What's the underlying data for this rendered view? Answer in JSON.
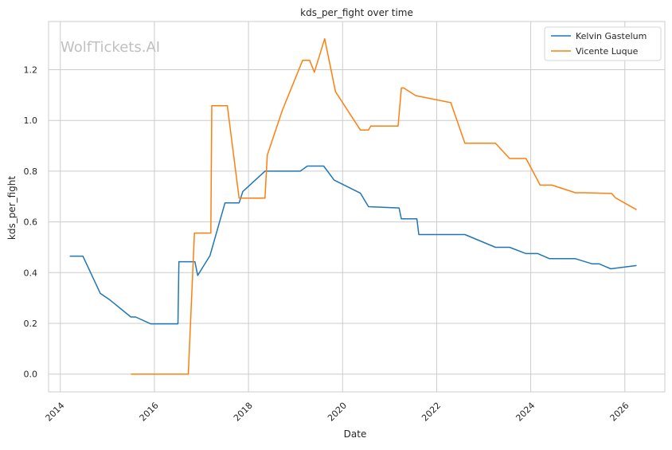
{
  "chart_data": {
    "type": "line",
    "title": "kds_per_fight over time",
    "xlabel": "Date",
    "ylabel": "kds_per_fight",
    "watermark": "WolfTickets.AI",
    "xlim": [
      2013.75,
      2026.85
    ],
    "ylim": [
      -0.07,
      1.39
    ],
    "xticks": [
      2014,
      2016,
      2018,
      2020,
      2022,
      2024,
      2026
    ],
    "yticks": [
      0.0,
      0.2,
      0.4,
      0.6,
      0.8,
      1.0,
      1.2
    ],
    "xtick_labels": [
      "2014",
      "2016",
      "2018",
      "2020",
      "2022",
      "2024",
      "2026"
    ],
    "ytick_labels": [
      "0.0",
      "0.2",
      "0.4",
      "0.6",
      "0.8",
      "1.0",
      "1.2"
    ],
    "grid": true,
    "legend_position": "top-right",
    "series": [
      {
        "name": "Kelvin Gastelum",
        "color": "#1f77b4",
        "x": [
          2014.2,
          2014.48,
          2014.85,
          2015.05,
          2015.5,
          2015.6,
          2015.92,
          2016.5,
          2016.52,
          2016.86,
          2016.92,
          2017.18,
          2017.5,
          2017.8,
          2017.88,
          2018.35,
          2019.1,
          2019.25,
          2019.6,
          2019.82,
          2020.38,
          2020.55,
          2021.2,
          2021.25,
          2021.58,
          2021.62,
          2022.6,
          2023.25,
          2023.55,
          2023.9,
          2024.15,
          2024.4,
          2024.95,
          2025.3,
          2025.45,
          2025.7,
          2026.25
        ],
        "values": [
          0.465,
          0.465,
          0.318,
          0.293,
          0.225,
          0.225,
          0.198,
          0.198,
          0.443,
          0.443,
          0.389,
          0.467,
          0.675,
          0.675,
          0.72,
          0.8,
          0.8,
          0.82,
          0.82,
          0.765,
          0.713,
          0.66,
          0.655,
          0.612,
          0.612,
          0.55,
          0.55,
          0.5,
          0.5,
          0.475,
          0.475,
          0.455,
          0.455,
          0.435,
          0.435,
          0.415,
          0.428
        ]
      },
      {
        "name": "Vicente Luque",
        "color": "#ff7f0e",
        "x": [
          2015.5,
          2016.72,
          2016.85,
          2017.2,
          2017.22,
          2017.55,
          2017.8,
          2018.35,
          2018.4,
          2018.72,
          2019.15,
          2019.3,
          2019.4,
          2019.62,
          2019.85,
          2020.38,
          2020.55,
          2020.6,
          2021.18,
          2021.25,
          2021.3,
          2021.55,
          2022.3,
          2022.6,
          2023.25,
          2023.55,
          2023.9,
          2024.2,
          2024.45,
          2024.95,
          2025.15,
          2025.72,
          2025.8,
          2026.25
        ],
        "values": [
          0.0,
          0.0,
          0.556,
          0.556,
          1.058,
          1.058,
          0.694,
          0.694,
          0.863,
          1.04,
          1.237,
          1.237,
          1.19,
          1.322,
          1.113,
          0.962,
          0.962,
          0.978,
          0.978,
          1.128,
          1.128,
          1.098,
          1.07,
          0.91,
          0.91,
          0.85,
          0.85,
          0.745,
          0.745,
          0.715,
          0.715,
          0.712,
          0.695,
          0.648
        ]
      }
    ]
  }
}
